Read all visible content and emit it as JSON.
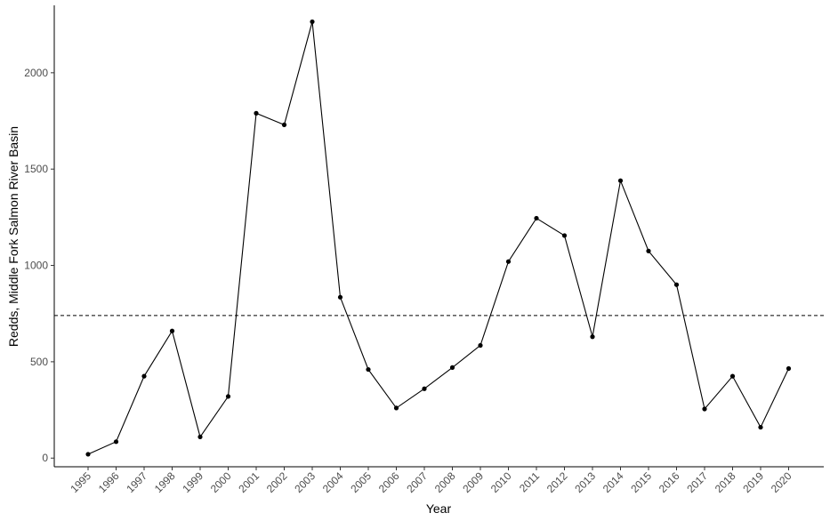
{
  "chart_data": {
    "type": "line",
    "title": "",
    "xlabel": "Year",
    "ylabel": "Redds, Middle Fork Salmon River Basin",
    "x": [
      "1995",
      "1996",
      "1997",
      "1998",
      "1999",
      "2000",
      "2001",
      "2002",
      "2003",
      "2004",
      "2005",
      "2006",
      "2007",
      "2008",
      "2009",
      "2010",
      "2011",
      "2012",
      "2013",
      "2014",
      "2015",
      "2016",
      "2017",
      "2018",
      "2019",
      "2020"
    ],
    "values": [
      20,
      85,
      425,
      660,
      110,
      320,
      1790,
      1730,
      2265,
      835,
      460,
      260,
      360,
      470,
      585,
      1020,
      1245,
      1155,
      630,
      1440,
      1075,
      900,
      255,
      425,
      160,
      465
    ],
    "yticks": [
      0,
      500,
      1000,
      1500,
      2000
    ],
    "ylim": [
      -45,
      2350
    ],
    "reference_line": {
      "y": 740,
      "style": "dashed"
    },
    "grid": false,
    "legend": "none",
    "colors": {
      "line": "#000000",
      "point": "#000000",
      "axis": "#000000",
      "tick_label": "#4d4d4d"
    }
  }
}
